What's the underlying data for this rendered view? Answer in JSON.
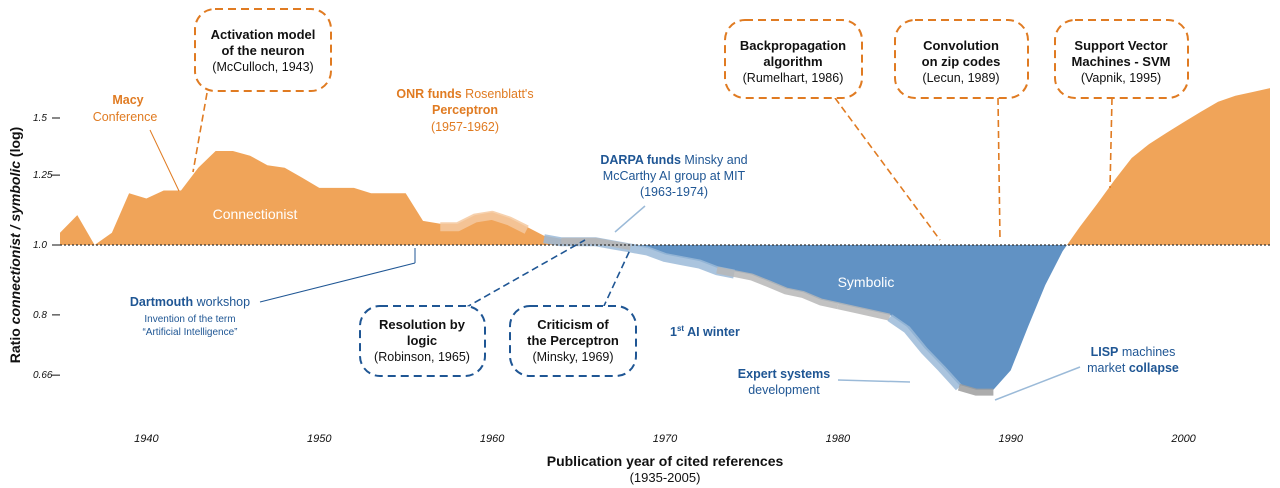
{
  "chart_data": {
    "type": "area",
    "xlabel": "Publication year of cited references",
    "xlabel_sub": "(1935-2005)",
    "ylabel_parts": [
      "Ratio ",
      "connectionist / symbolic",
      " (log)"
    ],
    "yscale": "log",
    "xlim": [
      1935,
      2005
    ],
    "ylim": [
      0.6,
      1.8
    ],
    "baseline": 1.0,
    "x_ticks": [
      1940,
      1950,
      1960,
      1970,
      1980,
      1990,
      2000
    ],
    "y_ticks": [
      {
        "value": 0.66,
        "label": "0.66"
      },
      {
        "value": 0.8,
        "label": "0.8"
      },
      {
        "value": 1.0,
        "label": "1.0"
      },
      {
        "value": 1.25,
        "label": "1.25"
      },
      {
        "value": 1.5,
        "label": "1.5"
      }
    ],
    "region_labels": {
      "connectionist": "Connectionist",
      "symbolic": "Symbolic"
    },
    "colors": {
      "connectionist": "#f0a459",
      "symbolic": "#6192c4",
      "orange_text": "#e07b22",
      "blue_text": "#1f5694"
    },
    "series": [
      {
        "x": [
          1935,
          1936,
          1937,
          1938,
          1939,
          1940,
          1941,
          1942,
          1943,
          1944,
          1945,
          1946,
          1947,
          1948,
          1949,
          1950,
          1951,
          1952,
          1953,
          1954,
          1955,
          1956,
          1957,
          1958,
          1959,
          1960,
          1961,
          1962,
          1963,
          1964,
          1965,
          1966,
          1967,
          1968,
          1969,
          1970,
          1971,
          1972,
          1973,
          1974,
          1975,
          1976,
          1977,
          1978,
          1979,
          1980,
          1981,
          1982,
          1983,
          1984,
          1985,
          1986,
          1987,
          1988,
          1989,
          1990,
          1991,
          1992,
          1993,
          1994,
          1995,
          1996,
          1997,
          1998,
          1999,
          2000,
          2001,
          2002,
          2003,
          2004,
          2005
        ],
        "y": [
          1.04,
          1.1,
          1.0,
          1.04,
          1.18,
          1.16,
          1.19,
          1.19,
          1.28,
          1.35,
          1.35,
          1.33,
          1.29,
          1.28,
          1.24,
          1.2,
          1.2,
          1.2,
          1.18,
          1.18,
          1.18,
          1.08,
          1.07,
          1.07,
          1.1,
          1.11,
          1.09,
          1.06,
          1.03,
          1.02,
          1.02,
          1.02,
          1.01,
          1.0,
          0.99,
          0.97,
          0.96,
          0.95,
          0.93,
          0.92,
          0.91,
          0.89,
          0.87,
          0.86,
          0.84,
          0.83,
          0.82,
          0.81,
          0.8,
          0.77,
          0.72,
          0.68,
          0.64,
          0.63,
          0.63,
          0.67,
          0.77,
          0.88,
          0.98,
          1.06,
          1.14,
          1.23,
          1.32,
          1.38,
          1.43,
          1.48,
          1.53,
          1.58,
          1.61,
          1.63,
          1.65
        ]
      }
    ],
    "annotations": {
      "macy": {
        "bold": "Macy",
        "line2": "Conference"
      },
      "onr": {
        "bold": "ONR funds",
        "rest": " Rosenblatt's",
        "bold2": "Perceptron",
        "line3": "(1957-1962)"
      },
      "darpa": {
        "bold": "DARPA funds",
        "rest": " Minsky and",
        "line2": "McCarthy AI group at MIT",
        "line3": "(1963-1974)"
      },
      "dartmouth": {
        "bold": "Dartmouth",
        "rest": " workshop",
        "line2": "Invention of the term",
        "line3": "“Artificial Intelligence”"
      },
      "ai_winter": {
        "sup": "st",
        "pre": "1",
        "rest": " AI winter"
      },
      "expert": {
        "bold": "Expert systems",
        "line2": "development"
      },
      "lisp": {
        "bold": "LISP",
        "rest": " machines",
        "line2": "market ",
        "bold2": "collapse"
      }
    },
    "boxes": [
      {
        "id": "activation",
        "color": "orange",
        "bold": [
          "Activation model",
          "of the neuron"
        ],
        "normal": [
          "(McCulloch, 1943)"
        ]
      },
      {
        "id": "backprop",
        "color": "orange",
        "bold": [
          "Backpropagation",
          "algorithm"
        ],
        "normal": [
          "(Rumelhart, 1986)"
        ]
      },
      {
        "id": "convolution",
        "color": "orange",
        "bold": [
          "Convolution",
          "on zip codes"
        ],
        "normal": [
          "(Lecun, 1989)"
        ]
      },
      {
        "id": "svm",
        "color": "orange",
        "bold": [
          "Support Vector",
          "Machines - SVM"
        ],
        "normal": [
          "(Vapnik, 1995)"
        ]
      },
      {
        "id": "resolution",
        "color": "blue",
        "bold": [
          "Resolution by",
          "logic"
        ],
        "normal": [
          "(Robinson, 1965)"
        ]
      },
      {
        "id": "criticism",
        "color": "blue",
        "bold": [
          "Criticism of",
          "the Perceptron"
        ],
        "normal": [
          "(Minsky, 1969)"
        ]
      }
    ]
  }
}
